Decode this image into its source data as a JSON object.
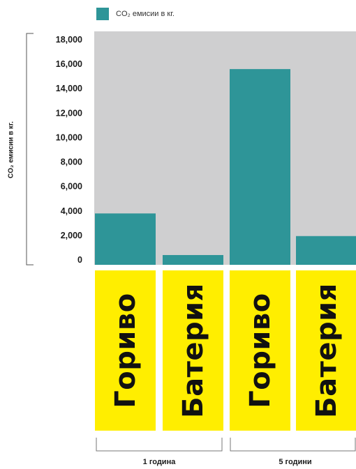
{
  "colors": {
    "bar": "#2e9598",
    "plot_bg": "#cfcfd0",
    "category_box": "#ffee00",
    "axis_line": "#555555"
  },
  "chart_data": {
    "type": "bar",
    "legend": {
      "position": "top-left",
      "label": "CO₂ емисии в кг."
    },
    "ylabel": "CO₂ емисии в кг.",
    "xlabel": "",
    "ylim": [
      0,
      18000
    ],
    "yticks": [
      0,
      2000,
      4000,
      6000,
      8000,
      10000,
      12000,
      14000,
      16000,
      18000
    ],
    "ytick_labels": [
      "0",
      "2,000",
      "4,000",
      "6,000",
      "8,000",
      "10,000",
      "12,000",
      "14,000",
      "16,000",
      "18,000"
    ],
    "grid": false,
    "categories": [
      "Гориво",
      "Батерия",
      "Гориво",
      "Батерия"
    ],
    "series": [
      {
        "name": "CO₂ емисии в кг.",
        "values": [
          3800,
          400,
          15600,
          1950
        ]
      }
    ],
    "groups": [
      {
        "label": "1 година",
        "categories": [
          0,
          1
        ]
      },
      {
        "label": "5 години",
        "categories": [
          2,
          3
        ]
      }
    ]
  }
}
